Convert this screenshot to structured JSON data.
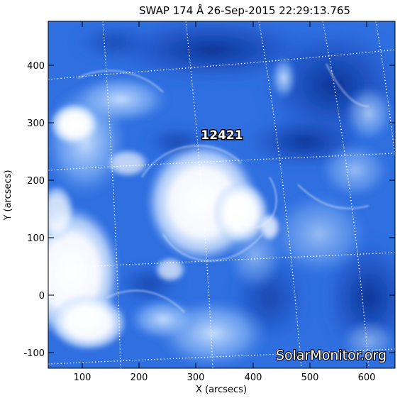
{
  "title": "SWAP 174 Å 26-Sep-2015 22:29:13.765",
  "x_axis": {
    "label": "X (arcsecs)",
    "range": [
      40,
      650
    ],
    "ticks": [
      "100",
      "200",
      "300",
      "400",
      "500",
      "600"
    ]
  },
  "y_axis": {
    "label": "Y (arcsecs)",
    "range": [
      -125,
      480
    ],
    "ticks": [
      "400",
      "300",
      "200",
      "100",
      "0",
      "-100"
    ]
  },
  "active_region": {
    "label": "12421",
    "x": 320,
    "y": 285
  },
  "watermark": "SolarMonitor.org",
  "colors": {
    "deep": "#0a2e8c",
    "mid": "#2f6fe0",
    "light": "#a9cdfb",
    "bright": "#ffffff",
    "grid": "#ffffff"
  }
}
